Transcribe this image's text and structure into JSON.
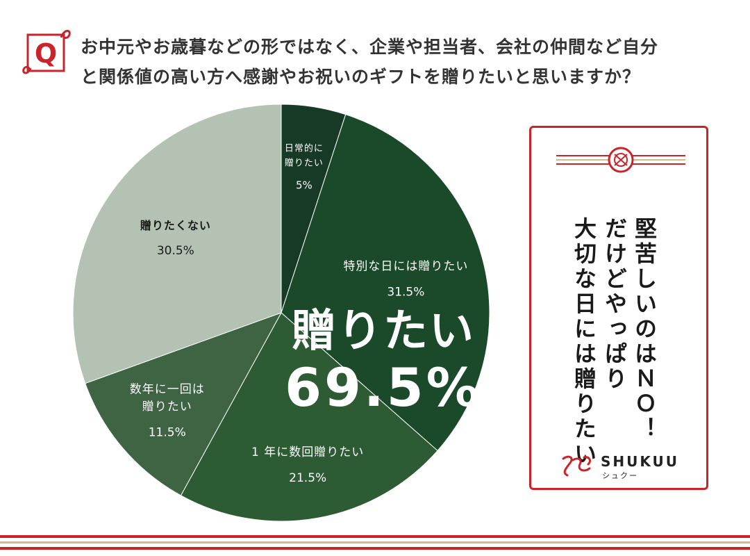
{
  "question": {
    "line1": "お中元やお歳暮などの形ではなく、企業や担当者、会社の仲間など自分",
    "line2": "と関係値の高い方へ感謝やお祝いのギフトを贈りたいと思いますか？"
  },
  "q_mark": "Q",
  "highlight": {
    "label": "贈りたい",
    "value": "69.5%"
  },
  "note": {
    "col1": "堅苦しいのはＮＯ！",
    "col2": "だけどやっぱり",
    "col3": "大切な日には贈りたい"
  },
  "brand": {
    "name": "SHUKUU",
    "kana": "シュクー"
  },
  "colors": {
    "accent": "#c8242a",
    "stripe_gold": "#d8b98a"
  },
  "chart_data": {
    "type": "pie",
    "start": "12 o'clock, clockwise",
    "slices": [
      {
        "label": "日常的に贈りたい",
        "label_lines": [
          "日常的に",
          "贈りたい"
        ],
        "value": 5,
        "value_text": "5%",
        "color": "#173a26"
      },
      {
        "label": "特別な日には贈りたい",
        "label_lines": [
          "特別な日には贈りたい"
        ],
        "value": 31.5,
        "value_text": "31.5%",
        "color": "#1b4a2b"
      },
      {
        "label": "1年に数回贈りたい",
        "label_lines": [
          "1 年に数回贈りたい"
        ],
        "value": 21.5,
        "value_text": "21.5%",
        "color": "#2c5b34"
      },
      {
        "label": "数年に一回は贈りたい",
        "label_lines": [
          "数年に一回は",
          "贈りたい"
        ],
        "value": 11.5,
        "value_text": "11.5%",
        "color": "#3e6444"
      },
      {
        "label": "贈りたくない",
        "label_lines": [
          "贈りたくない"
        ],
        "value": 30.5,
        "value_text": "30.5%",
        "color": "#b3c2b3"
      }
    ]
  }
}
